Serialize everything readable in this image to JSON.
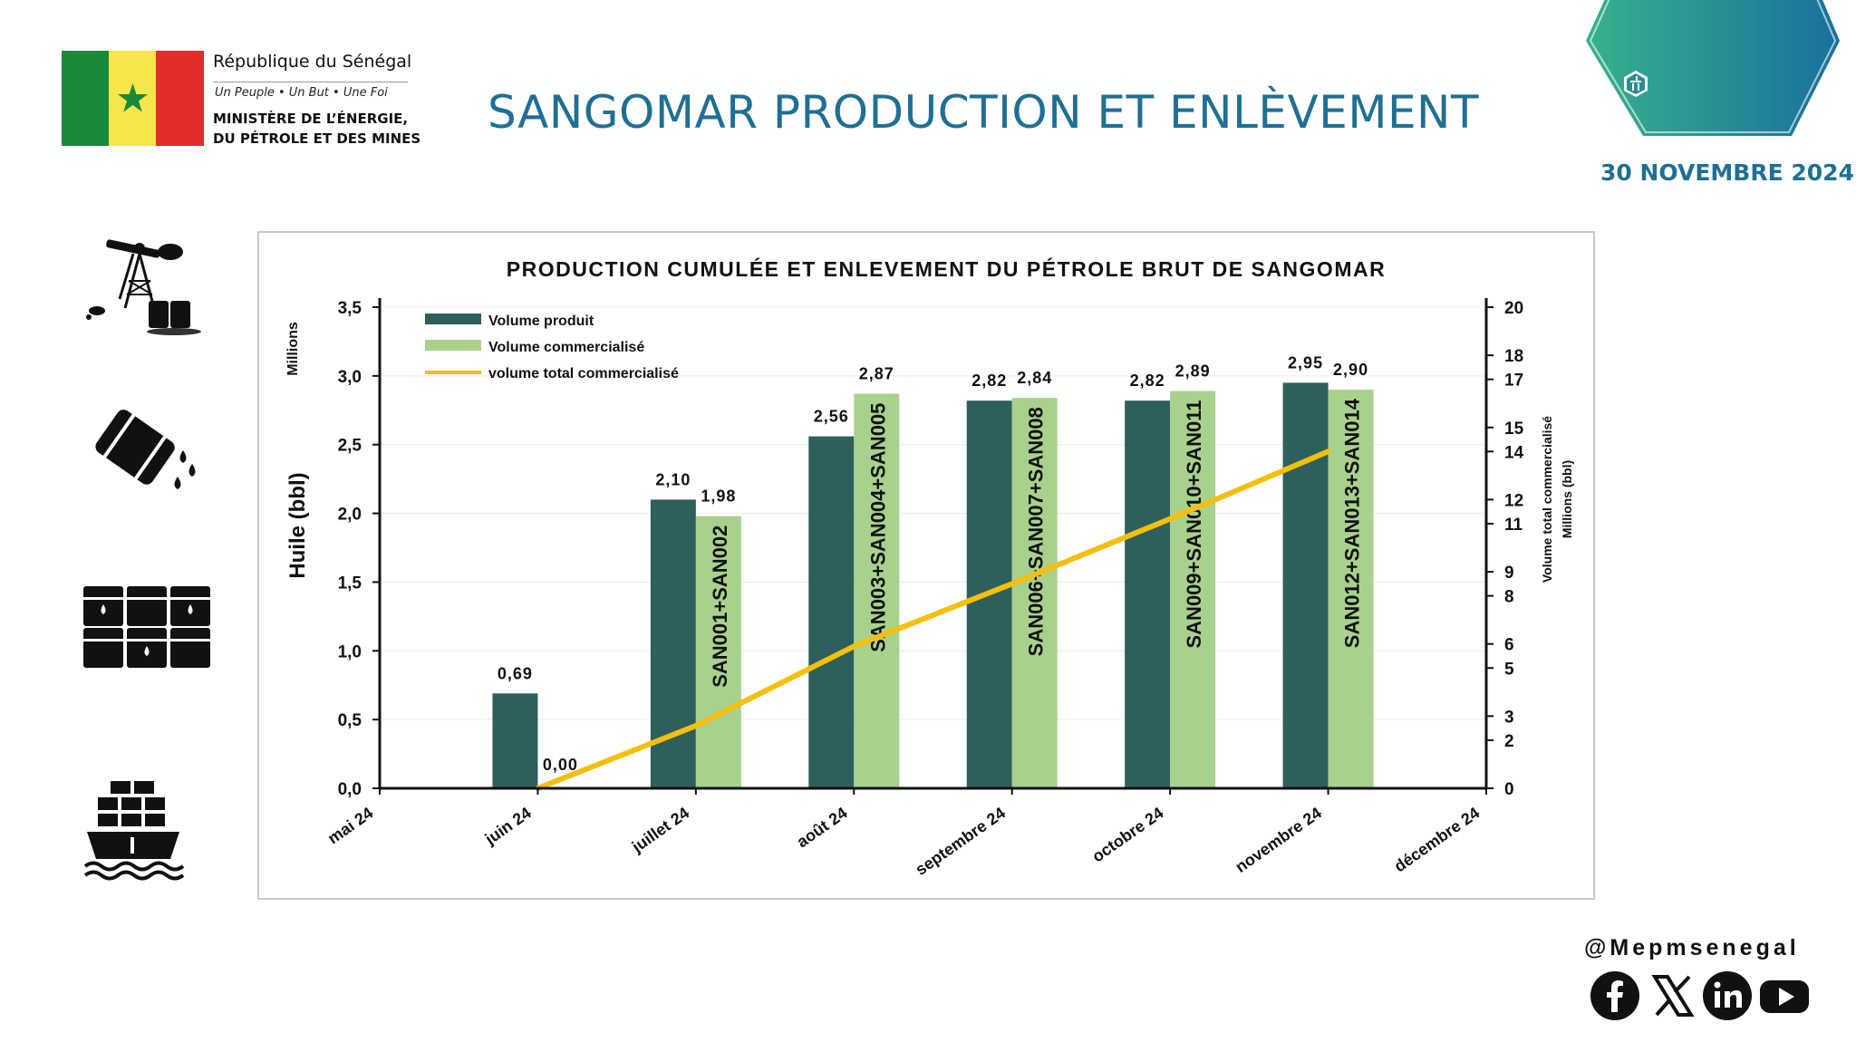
{
  "header": {
    "republic": "République du Sénégal",
    "motto": "Un Peuple  •  Un But  •  Une Foi",
    "ministry_line1": "MINISTÈRE DE L’ÉNERGIE,",
    "ministry_line2": "DU PÉTROLE ET DES MINES",
    "title": "SANGOMAR  PRODUCTION ET ENLÈVEMENT",
    "date": "30 NOVEMBRE 2024"
  },
  "side_icons": [
    "oil-pump-icon",
    "oil-barrel-spill-icon",
    "oil-barrels-icon",
    "cargo-ship-icon"
  ],
  "footer": {
    "handle": "@Mepmsenegal",
    "social_icons": [
      "facebook-icon",
      "x-icon",
      "linkedin-icon",
      "youtube-icon"
    ]
  },
  "colors": {
    "title_blue": "#1f6f95",
    "produced": "#2d5f5d",
    "sold": "#a9d18e",
    "cumulative_line": "#f5bf0c",
    "badge_gradient_start": "#36b28c",
    "badge_gradient_end": "#1a6f9c"
  },
  "chart_data": {
    "type": "bar",
    "title": "PRODUCTION CUMULÉE ET ENLEVEMENT DU PÉTROLE BRUT DE SANGOMAR",
    "categories": [
      "mai 24",
      "juin 24",
      "juillet 24",
      "août 24",
      "septembre 24",
      "octobre 24",
      "novembre 24",
      "décembre 24"
    ],
    "ylabel": "Huile (bbl)",
    "ylabel_unit": "Millions",
    "y2label": "Volume total commercialisé",
    "y2label_unit": "Millions (bbl)",
    "ylim": [
      0,
      3.5
    ],
    "yticks": [
      "0,0",
      "0,5",
      "1,0",
      "1,5",
      "2,0",
      "2,5",
      "3,0",
      "3,5"
    ],
    "y2lim": [
      0,
      20
    ],
    "y2ticks": [
      "0",
      "2",
      "3",
      "5",
      "6",
      "8",
      "9",
      "11",
      "12",
      "14",
      "15",
      "17",
      "18",
      "20"
    ],
    "series": [
      {
        "name": "Volume produit",
        "type": "bar",
        "axis": "left",
        "values": [
          null,
          0.69,
          2.1,
          2.56,
          2.82,
          2.82,
          2.95,
          null
        ],
        "labels": [
          "",
          "0,69",
          "2,10",
          "2,56",
          "2,82",
          "2,82",
          "2,95",
          ""
        ]
      },
      {
        "name": "Volume commercialisé",
        "type": "bar",
        "axis": "left",
        "values": [
          null,
          0.0,
          1.98,
          2.87,
          2.84,
          2.89,
          2.9,
          null
        ],
        "labels": [
          "",
          "0,00",
          "1,98",
          "2,87",
          "2,84",
          "2,89",
          "2,90",
          ""
        ]
      },
      {
        "name": "volume total commercialisé",
        "type": "line",
        "axis": "right",
        "values": [
          null,
          0.0,
          2.6,
          5.9,
          8.5,
          11.2,
          14.0,
          null
        ]
      }
    ],
    "cargo_labels": [
      "",
      "",
      "SAN001+SAN002",
      "SAN003+SAN004+SAN005",
      "SAN006+SAN007+SAN008",
      "SAN009+SAN010+SAN011",
      "SAN012+SAN013+SAN014",
      ""
    ],
    "legend_position": "top-left",
    "grid": true
  }
}
